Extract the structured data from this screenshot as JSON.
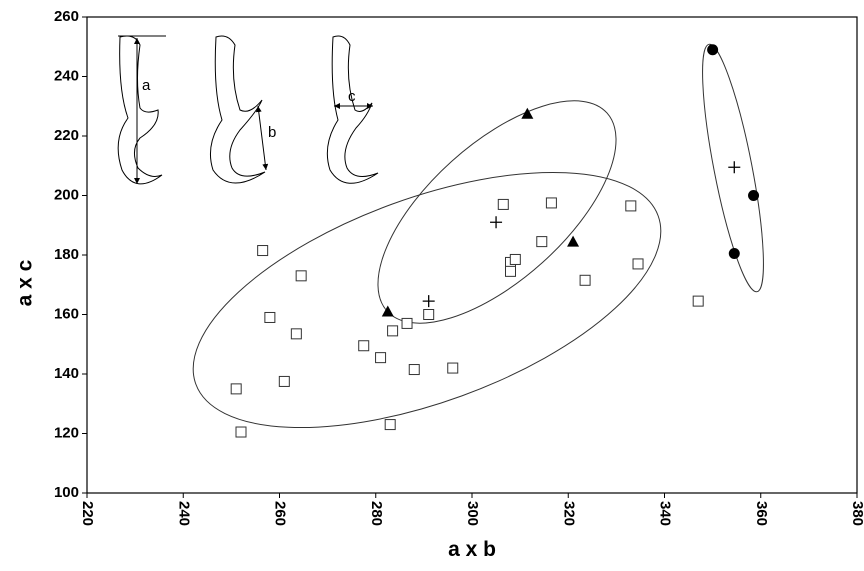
{
  "chart_data": {
    "type": "scatter",
    "xlabel": "a x b",
    "ylabel": "a x c",
    "xlim": [
      220,
      380
    ],
    "xticks": [
      220,
      240,
      260,
      280,
      300,
      320,
      340,
      360,
      380
    ],
    "ylim": [
      100,
      260
    ],
    "yticks": [
      100,
      120,
      140,
      160,
      180,
      200,
      220,
      240,
      260
    ],
    "grid": false,
    "annotations": [
      "a",
      "b",
      "c"
    ],
    "series": [
      {
        "marker": "square",
        "color": "#333333",
        "x": [
          251,
          252,
          256.5,
          258,
          261,
          263.5,
          264.5,
          277.5,
          281,
          283,
          283.5,
          286.5,
          288,
          291,
          296,
          306.5,
          308,
          308,
          309,
          314.5,
          316.5,
          323.5,
          333,
          334.5,
          347
        ],
        "y": [
          135,
          120.5,
          181.5,
          159,
          137.5,
          153.5,
          173,
          149.5,
          145.5,
          123,
          154.5,
          157,
          141.5,
          160,
          142,
          197,
          177.5,
          174.5,
          178.5,
          184.5,
          197.5,
          171.5,
          196.5,
          177,
          164.5
        ]
      },
      {
        "marker": "triangle",
        "color": "#000000",
        "x": [
          282.5,
          311.5,
          321
        ],
        "y": [
          161,
          227.5,
          184.5
        ]
      },
      {
        "marker": "circle",
        "color": "#000000",
        "x": [
          350,
          358.5,
          354.5
        ],
        "y": [
          249,
          200,
          180.5
        ]
      },
      {
        "marker": "plus",
        "color": "#000000",
        "x": [
          291,
          305,
          354.5
        ],
        "y": [
          164.5,
          191,
          209.5
        ]
      }
    ]
  }
}
